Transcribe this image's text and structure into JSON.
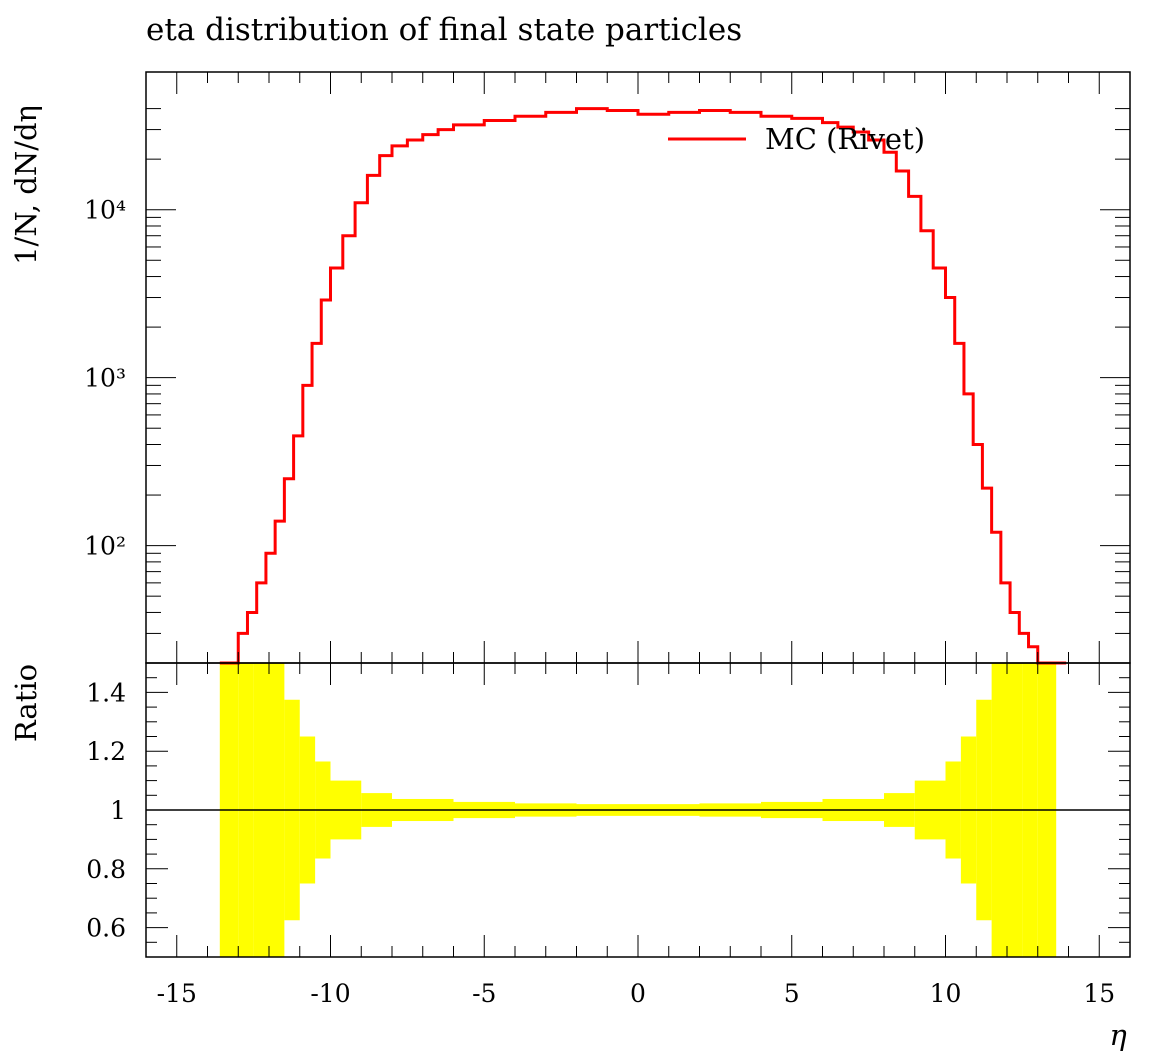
{
  "chart_data": {
    "type": "line",
    "title": "eta distribution of final state particles",
    "xlabel": "η",
    "ylabel": "1/N, dN/dη",
    "ratio_ylabel": "Ratio",
    "xlim": [
      -16,
      16
    ],
    "ylim": [
      20,
      45000
    ],
    "yscale": "log",
    "ratio_ylim": [
      0.5,
      1.5
    ],
    "x_ticks": [
      "-15",
      "-10",
      "-5",
      "0",
      "5",
      "10",
      "15"
    ],
    "y_ticks": [
      "10⁴",
      "10³",
      "10²"
    ],
    "ratio_ticks": [
      "1.4",
      "1.2",
      "1",
      "0.8",
      "0.6"
    ],
    "legend": {
      "position": "top-right"
    },
    "series": [
      {
        "name": "MC (Rivet)",
        "color": "#ff0000",
        "x": [
          -13.6,
          -13.3,
          -13.0,
          -12.7,
          -12.4,
          -12.1,
          -11.8,
          -11.5,
          -11.2,
          -10.9,
          -10.6,
          -10.3,
          -10.0,
          -9.6,
          -9.2,
          -8.8,
          -8.4,
          -8.0,
          -7.5,
          -7.0,
          -6.5,
          -6.0,
          -5.0,
          -4.0,
          -3.0,
          -2.0,
          -1.0,
          0.0,
          1.0,
          2.0,
          3.0,
          4.0,
          5.0,
          6.0,
          6.5,
          7.0,
          7.5,
          8.0,
          8.4,
          8.8,
          9.2,
          9.6,
          10.0,
          10.3,
          10.6,
          10.9,
          11.2,
          11.5,
          11.8,
          12.1,
          12.4,
          12.7,
          13.0,
          13.3,
          13.6
        ],
        "values": [
          20,
          20,
          30,
          40,
          60,
          90,
          140,
          250,
          450,
          900,
          1600,
          2900,
          4500,
          7000,
          11000,
          16000,
          21000,
          24000,
          26000,
          28000,
          30000,
          32000,
          34000,
          36000,
          38000,
          40000,
          39000,
          37000,
          38000,
          39000,
          38000,
          36000,
          35000,
          33000,
          31000,
          29000,
          26000,
          22000,
          17000,
          12000,
          7500,
          4500,
          3000,
          1600,
          800,
          400,
          220,
          120,
          60,
          40,
          30,
          25,
          20,
          20,
          20
        ]
      }
    ],
    "ratio_band": {
      "color": "#ffff00",
      "x": [
        -13.6,
        -13.0,
        -12.5,
        -12.0,
        -11.5,
        -11.0,
        -10.5,
        -10.0,
        -9.0,
        -8.0,
        -6.0,
        -4.0,
        -2.0,
        0.0,
        2.0,
        4.0,
        6.0,
        8.0,
        9.0,
        10.0,
        10.5,
        11.0,
        11.5,
        12.0,
        12.5,
        13.0,
        13.6
      ],
      "half_width": [
        1.0,
        0.9,
        0.75,
        0.6,
        0.45,
        0.3,
        0.2,
        0.13,
        0.07,
        0.045,
        0.03,
        0.025,
        0.02,
        0.02,
        0.02,
        0.025,
        0.03,
        0.045,
        0.07,
        0.13,
        0.2,
        0.3,
        0.45,
        0.6,
        0.75,
        0.9,
        1.0
      ]
    }
  }
}
